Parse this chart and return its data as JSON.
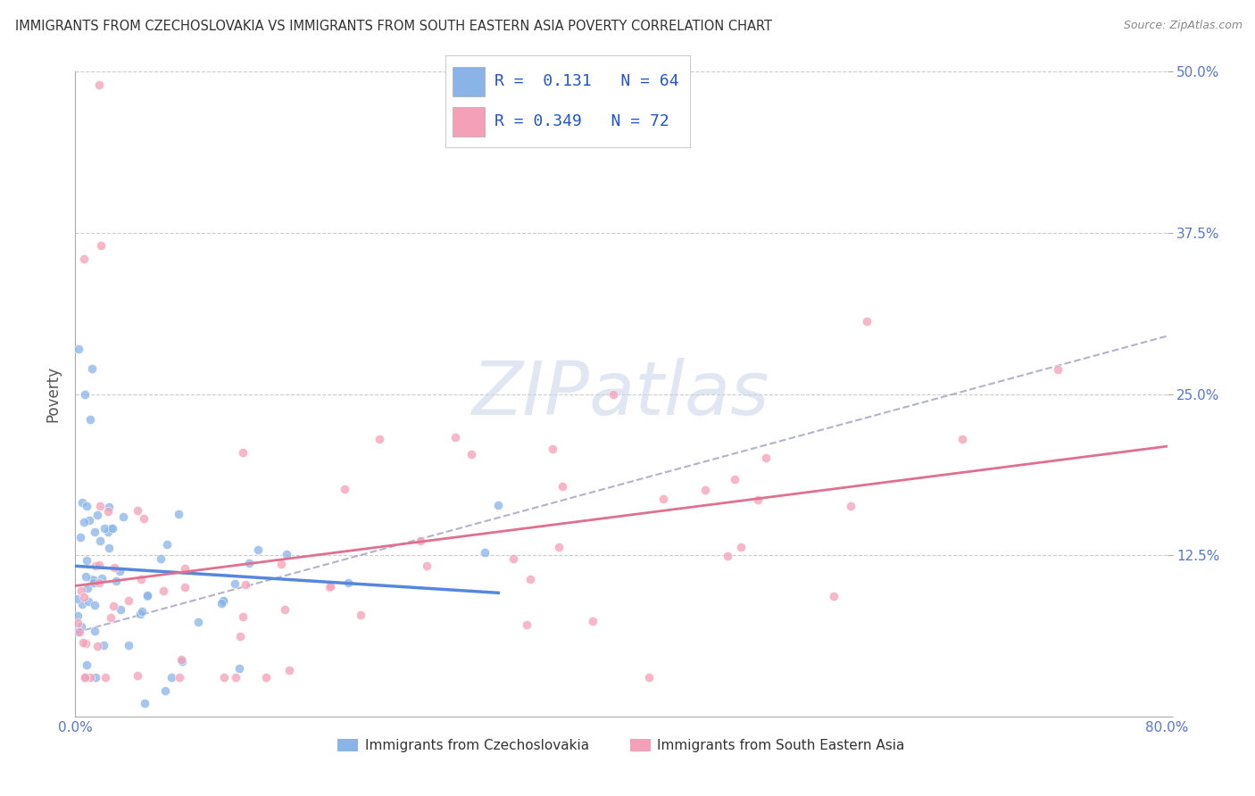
{
  "title": "IMMIGRANTS FROM CZECHOSLOVAKIA VS IMMIGRANTS FROM SOUTH EASTERN ASIA POVERTY CORRELATION CHART",
  "source": "Source: ZipAtlas.com",
  "ylabel": "Poverty",
  "xlim": [
    0.0,
    0.8
  ],
  "ylim": [
    0.0,
    0.5
  ],
  "xtick_vals": [
    0.0,
    0.2,
    0.4,
    0.6,
    0.8
  ],
  "xticklabels": [
    "0.0%",
    "",
    "",
    "",
    "80.0%"
  ],
  "ytick_vals": [
    0.0,
    0.125,
    0.25,
    0.375,
    0.5
  ],
  "yticklabels_left": [
    "",
    "",
    "",
    "",
    ""
  ],
  "yticklabels_right": [
    "",
    "12.5%",
    "25.0%",
    "37.5%",
    "50.0%"
  ],
  "series1_color": "#8ab4e8",
  "series2_color": "#f4a0b8",
  "series1_label": "Immigrants from Czechoslovakia",
  "series2_label": "Immigrants from South Eastern Asia",
  "R1": 0.131,
  "N1": 64,
  "R2": 0.349,
  "N2": 72,
  "watermark": "ZIPatlas",
  "background_color": "#ffffff",
  "grid_color": "#cccccc",
  "title_color": "#333333",
  "legend_color": "#2255cc",
  "trend1_color": "#5588dd",
  "trend2_color": "#e07090",
  "trend_gray_color": "#9999bb",
  "tick_label_color": "#5577cc"
}
